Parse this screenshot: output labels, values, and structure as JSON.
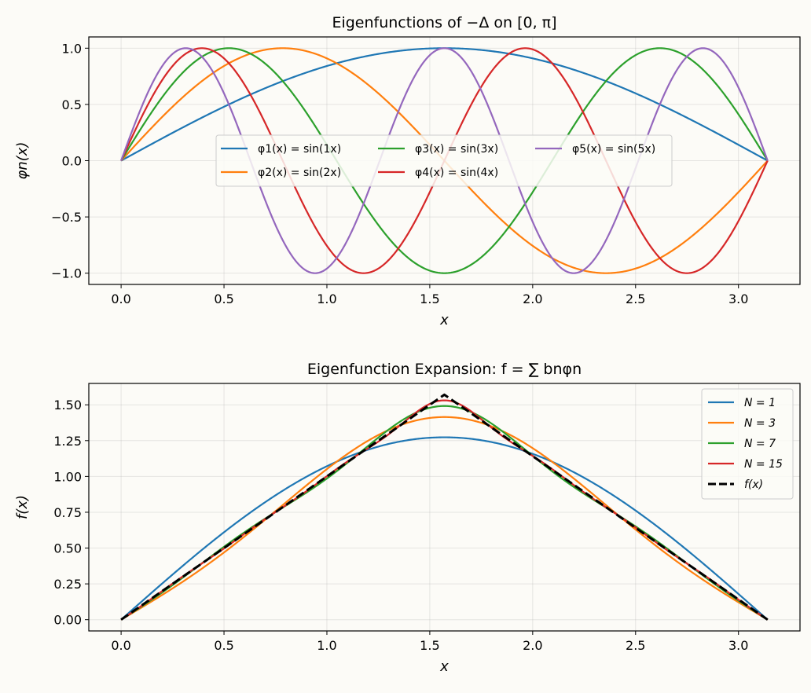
{
  "chart_data": [
    {
      "type": "line",
      "title": "Eigenfunctions of −Δ on [0, π]",
      "xlabel": "x",
      "ylabel": "φn(x)",
      "xlim": [
        -0.157,
        3.299
      ],
      "ylim": [
        -1.1,
        1.1
      ],
      "x_ticks": [
        0.0,
        0.5,
        1.0,
        1.5,
        2.0,
        2.5,
        3.0
      ],
      "x_tick_labels": [
        "0.0",
        "0.5",
        "1.0",
        "1.5",
        "2.0",
        "2.5",
        "3.0"
      ],
      "y_ticks": [
        -1.0,
        -0.5,
        0.0,
        0.5,
        1.0
      ],
      "y_tick_labels": [
        "−1.0",
        "−0.5",
        "0.0",
        "0.5",
        "1.0"
      ],
      "grid": true,
      "legend_position": "center",
      "legend_columns": 3,
      "series": [
        {
          "name": "φ1(x) = sin(1x)",
          "n": 1,
          "color": "#1f77b4"
        },
        {
          "name": "φ2(x) = sin(2x)",
          "n": 2,
          "color": "#ff7f0e"
        },
        {
          "name": "φ3(x) = sin(3x)",
          "n": 3,
          "color": "#2ca02c"
        },
        {
          "name": "φ4(x) = sin(4x)",
          "n": 4,
          "color": "#d62728"
        },
        {
          "name": "φ5(x) = sin(5x)",
          "n": 5,
          "color": "#9467bd"
        }
      ]
    },
    {
      "type": "line",
      "title": "Eigenfunction Expansion: f = ∑ bnφn",
      "xlabel": "x",
      "ylabel": "f(x)",
      "xlim": [
        -0.157,
        3.299
      ],
      "ylim": [
        -0.0785,
        1.6493
      ],
      "x_ticks": [
        0.0,
        0.5,
        1.0,
        1.5,
        2.0,
        2.5,
        3.0
      ],
      "x_tick_labels": [
        "0.0",
        "0.5",
        "1.0",
        "1.5",
        "2.0",
        "2.5",
        "3.0"
      ],
      "y_ticks": [
        0.0,
        0.25,
        0.5,
        0.75,
        1.0,
        1.25,
        1.5
      ],
      "y_tick_labels": [
        "0.00",
        "0.25",
        "0.50",
        "0.75",
        "1.00",
        "1.25",
        "1.50"
      ],
      "grid": true,
      "legend_position": "upper right",
      "series": [
        {
          "name": "N = 1",
          "N": 1,
          "color": "#1f77b4"
        },
        {
          "name": "N = 3",
          "N": 3,
          "color": "#ff7f0e"
        },
        {
          "name": "N = 7",
          "N": 7,
          "color": "#2ca02c"
        },
        {
          "name": "N = 15",
          "N": 15,
          "color": "#d62728"
        },
        {
          "name": "f(x)",
          "color": "#000000",
          "dashed": true
        }
      ]
    }
  ]
}
